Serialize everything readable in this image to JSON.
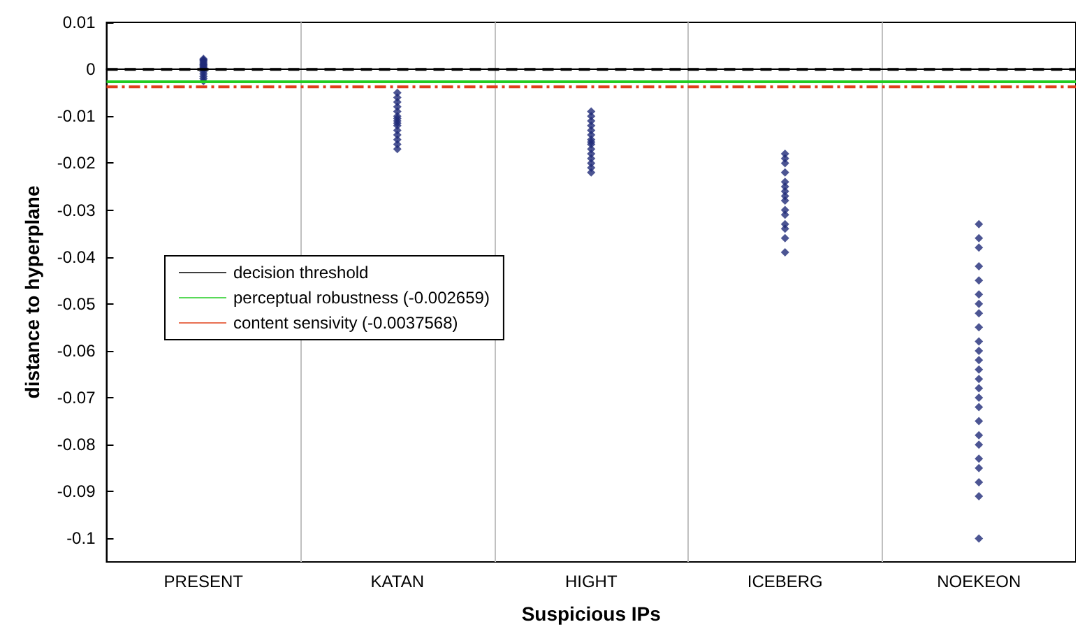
{
  "chart_data": {
    "type": "scatter",
    "xlabel": "Suspicious IPs",
    "ylabel": "distance to hyperplane",
    "categories": [
      "PRESENT",
      "KATAN",
      "HIGHT",
      "ICEBERG",
      "NOEKEON"
    ],
    "ylim": [
      -0.105,
      0.01
    ],
    "yticks": [
      -0.1,
      -0.09,
      -0.08,
      -0.07,
      -0.06,
      -0.05,
      -0.04,
      -0.03,
      -0.02,
      -0.01,
      0,
      0.01
    ],
    "grid": "x",
    "legend": "left",
    "marker": "diamond",
    "ref_lines": [
      {
        "axis": "y",
        "value": 0,
        "label": "decision threshold",
        "color": "#000000",
        "line_style": "dashed"
      },
      {
        "axis": "y",
        "value": -0.002659,
        "label": "perceptual robustness (-0.002659)",
        "color": "#22cc22",
        "line_style": "solid"
      },
      {
        "axis": "y",
        "value": -0.0037568,
        "label": "content sensivity (-0.0037568)",
        "color": "#e0401a",
        "line_style": "dashdot"
      }
    ],
    "series": [
      {
        "color": "#1f2a78",
        "x": [
          "PRESENT",
          "PRESENT",
          "PRESENT",
          "PRESENT",
          "PRESENT",
          "PRESENT",
          "PRESENT",
          "PRESENT",
          "PRESENT",
          "PRESENT",
          "PRESENT",
          "PRESENT",
          "PRESENT",
          "PRESENT",
          "PRESENT",
          "KATAN",
          "KATAN",
          "KATAN",
          "KATAN",
          "KATAN",
          "KATAN",
          "KATAN",
          "KATAN",
          "KATAN",
          "KATAN",
          "KATAN",
          "KATAN",
          "KATAN",
          "KATAN",
          "KATAN",
          "HIGHT",
          "HIGHT",
          "HIGHT",
          "HIGHT",
          "HIGHT",
          "HIGHT",
          "HIGHT",
          "HIGHT",
          "HIGHT",
          "HIGHT",
          "HIGHT",
          "HIGHT",
          "HIGHT",
          "HIGHT",
          "HIGHT",
          "ICEBERG",
          "ICEBERG",
          "ICEBERG",
          "ICEBERG",
          "ICEBERG",
          "ICEBERG",
          "ICEBERG",
          "ICEBERG",
          "ICEBERG",
          "ICEBERG",
          "ICEBERG",
          "ICEBERG",
          "ICEBERG",
          "ICEBERG",
          "ICEBERG",
          "NOEKEON",
          "NOEKEON",
          "NOEKEON",
          "NOEKEON",
          "NOEKEON",
          "NOEKEON",
          "NOEKEON",
          "NOEKEON",
          "NOEKEON",
          "NOEKEON",
          "NOEKEON",
          "NOEKEON",
          "NOEKEON",
          "NOEKEON",
          "NOEKEON",
          "NOEKEON",
          "NOEKEON",
          "NOEKEON",
          "NOEKEON",
          "NOEKEON",
          "NOEKEON",
          "NOEKEON",
          "NOEKEON",
          "NOEKEON",
          "NOEKEON"
        ],
        "values": [
          0.002,
          0.0015,
          0.001,
          0.0005,
          0,
          -0.0005,
          -0.001,
          -0.002,
          -0.0025,
          0.0022,
          0.0012,
          0.0008,
          0.0018,
          -0.0015,
          0.0003,
          -0.005,
          -0.006,
          -0.007,
          -0.008,
          -0.009,
          -0.01,
          -0.011,
          -0.012,
          -0.013,
          -0.014,
          -0.015,
          -0.016,
          -0.017,
          -0.0105,
          -0.0115,
          -0.009,
          -0.01,
          -0.011,
          -0.012,
          -0.013,
          -0.014,
          -0.015,
          -0.016,
          -0.017,
          -0.018,
          -0.019,
          -0.02,
          -0.021,
          -0.022,
          -0.0155,
          -0.018,
          -0.019,
          -0.02,
          -0.022,
          -0.024,
          -0.025,
          -0.026,
          -0.027,
          -0.028,
          -0.03,
          -0.031,
          -0.033,
          -0.034,
          -0.036,
          -0.039,
          -0.033,
          -0.036,
          -0.038,
          -0.042,
          -0.045,
          -0.048,
          -0.05,
          -0.052,
          -0.055,
          -0.058,
          -0.06,
          -0.062,
          -0.064,
          -0.066,
          -0.068,
          -0.07,
          -0.072,
          -0.075,
          -0.078,
          -0.08,
          -0.083,
          -0.085,
          -0.088,
          -0.091,
          -0.1
        ]
      }
    ]
  }
}
